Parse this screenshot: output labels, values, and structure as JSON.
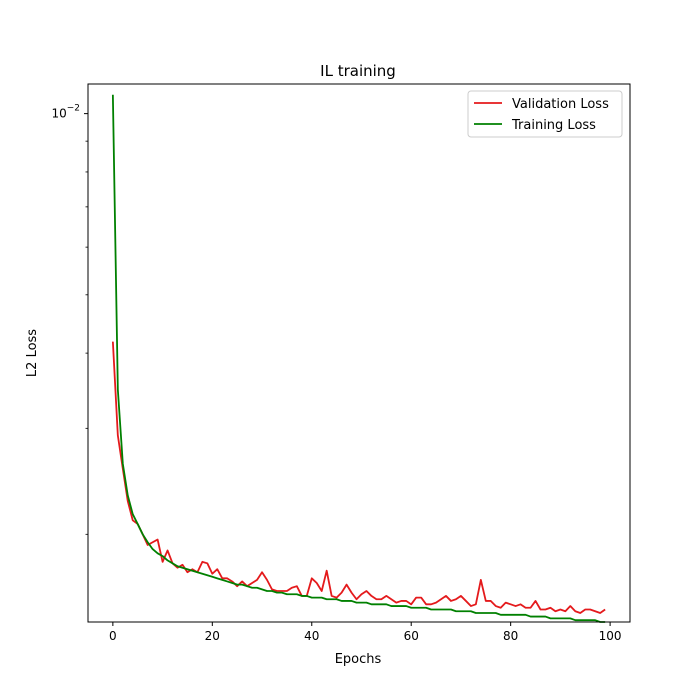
{
  "chart_data": {
    "type": "line",
    "title": "IL training",
    "xlabel": "Epochs",
    "ylabel": "L2 Loss",
    "xlim": [
      -5,
      104
    ],
    "ylim": [
      0.00143,
      0.0112
    ],
    "yscale": "log",
    "grid": false,
    "legend_position": "top-right",
    "x_ticks": [
      0,
      20,
      40,
      60,
      80,
      100
    ],
    "x_tick_labels": [
      "0",
      "20",
      "40",
      "60",
      "80",
      "100"
    ],
    "y_major_tick": 0.01,
    "y_major_tick_base": "10",
    "y_major_tick_exponent": "−2",
    "y_minor_ticks": [
      0.002,
      0.003,
      0.004,
      0.005,
      0.006,
      0.007,
      0.008,
      0.009
    ],
    "series": [
      {
        "name": "Validation Loss",
        "color": "#e41a1c",
        "values": [
          0.00418,
          0.00292,
          0.00257,
          0.00227,
          0.00211,
          0.00208,
          0.002,
          0.00192,
          0.00194,
          0.00196,
          0.0018,
          0.00188,
          0.00179,
          0.00176,
          0.00178,
          0.00173,
          0.00175,
          0.00173,
          0.0018,
          0.00179,
          0.00172,
          0.00175,
          0.00169,
          0.00169,
          0.00167,
          0.00164,
          0.00167,
          0.00164,
          0.00166,
          0.00168,
          0.00173,
          0.00168,
          0.00162,
          0.00161,
          0.00161,
          0.00161,
          0.00163,
          0.00164,
          0.00158,
          0.00158,
          0.00169,
          0.00166,
          0.00161,
          0.00174,
          0.00158,
          0.00157,
          0.0016,
          0.00165,
          0.0016,
          0.00156,
          0.00159,
          0.00161,
          0.00158,
          0.00156,
          0.00156,
          0.00158,
          0.00156,
          0.00154,
          0.00155,
          0.00155,
          0.00153,
          0.00157,
          0.00157,
          0.00153,
          0.00153,
          0.00154,
          0.00156,
          0.00158,
          0.00155,
          0.00156,
          0.00158,
          0.00155,
          0.00152,
          0.00153,
          0.00168,
          0.00155,
          0.00155,
          0.00152,
          0.00151,
          0.00154,
          0.00153,
          0.00152,
          0.00153,
          0.00151,
          0.00151,
          0.00155,
          0.0015,
          0.0015,
          0.00151,
          0.00149,
          0.0015,
          0.00149,
          0.00152,
          0.00149,
          0.00148,
          0.0015,
          0.0015,
          0.00149,
          0.00148,
          0.0015
        ]
      },
      {
        "name": "Training Loss",
        "color": "#008000",
        "values": [
          0.01075,
          0.00348,
          0.00262,
          0.00232,
          0.00216,
          0.00208,
          0.002,
          0.00194,
          0.00189,
          0.00186,
          0.00184,
          0.00181,
          0.00179,
          0.00177,
          0.00176,
          0.00175,
          0.00174,
          0.00173,
          0.00172,
          0.00171,
          0.0017,
          0.00169,
          0.00168,
          0.00167,
          0.00166,
          0.00165,
          0.00165,
          0.00164,
          0.00163,
          0.00163,
          0.00162,
          0.00161,
          0.00161,
          0.0016,
          0.0016,
          0.00159,
          0.00159,
          0.00159,
          0.00158,
          0.00158,
          0.00157,
          0.00157,
          0.00157,
          0.00156,
          0.00156,
          0.00156,
          0.00155,
          0.00155,
          0.00155,
          0.00154,
          0.00154,
          0.00154,
          0.00153,
          0.00153,
          0.00153,
          0.00153,
          0.00152,
          0.00152,
          0.00152,
          0.00152,
          0.00151,
          0.00151,
          0.00151,
          0.00151,
          0.0015,
          0.0015,
          0.0015,
          0.0015,
          0.0015,
          0.00149,
          0.00149,
          0.00149,
          0.00149,
          0.00148,
          0.00148,
          0.00148,
          0.00148,
          0.00148,
          0.00147,
          0.00147,
          0.00147,
          0.00147,
          0.00147,
          0.00147,
          0.00146,
          0.00146,
          0.00146,
          0.00146,
          0.00145,
          0.00145,
          0.00145,
          0.00145,
          0.00145,
          0.00144,
          0.00144,
          0.00144,
          0.00144,
          0.00144,
          0.00143,
          0.00143
        ]
      }
    ]
  }
}
